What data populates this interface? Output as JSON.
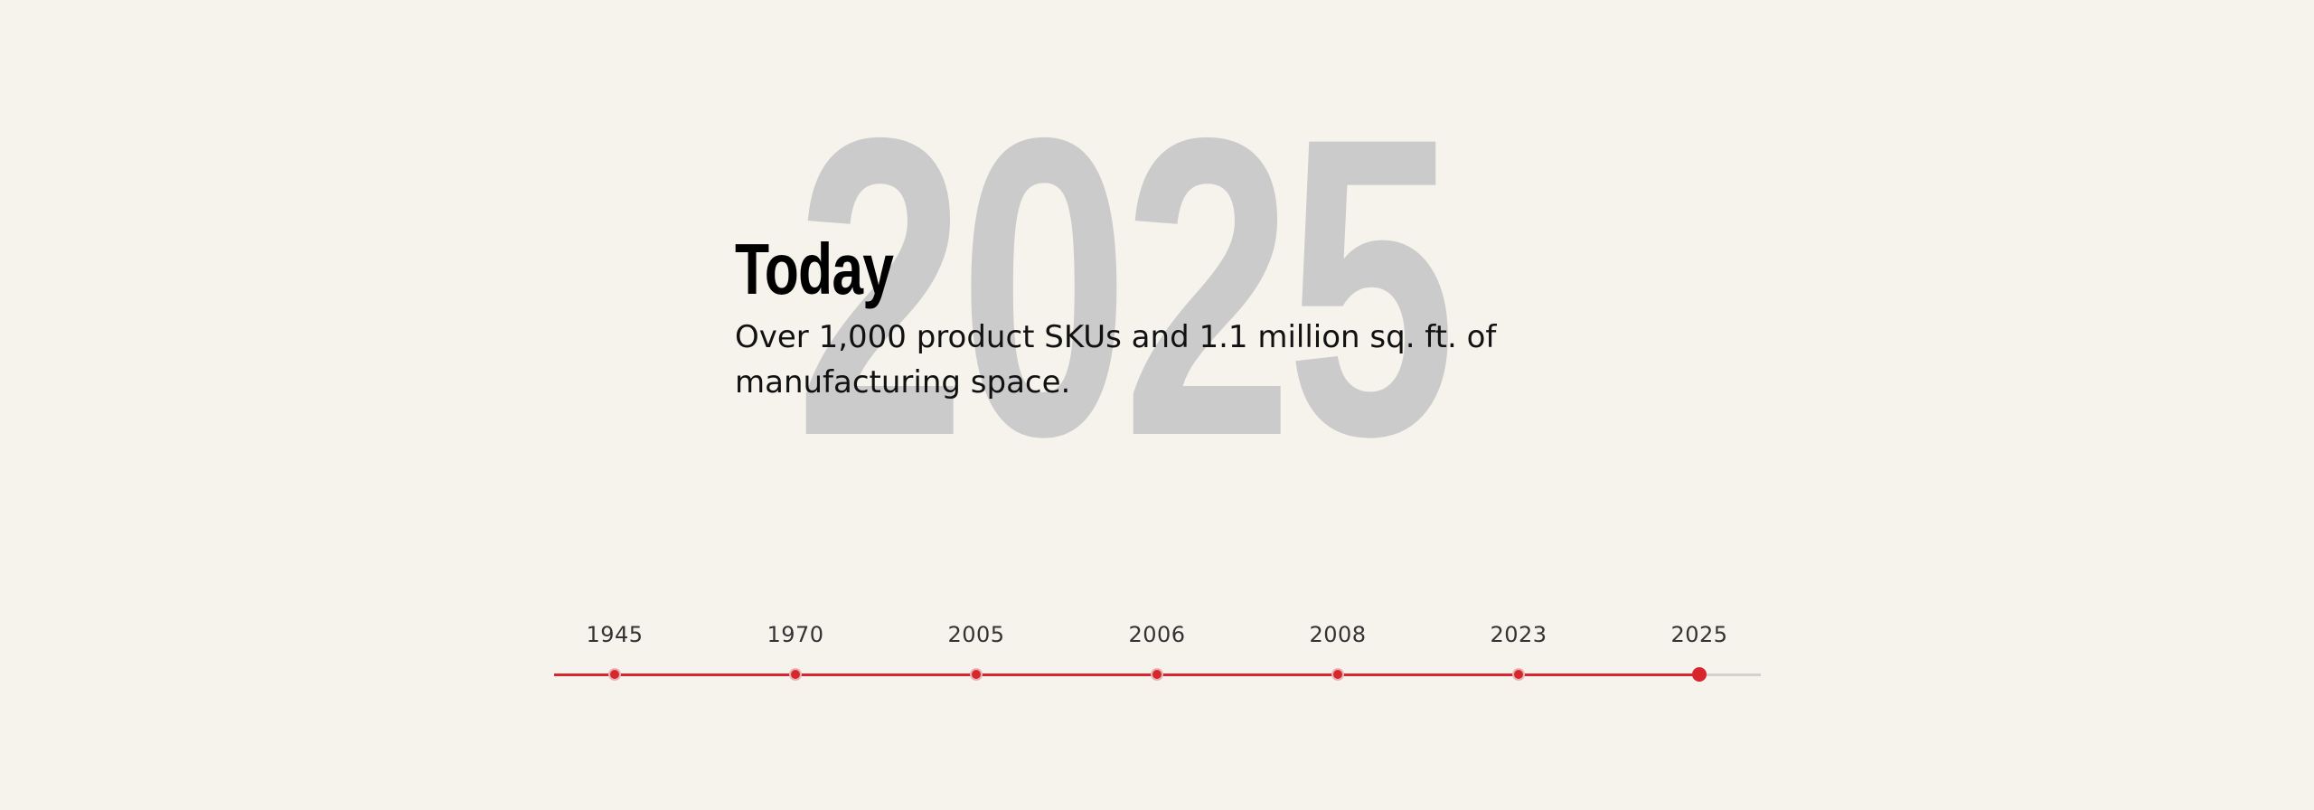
{
  "hero": {
    "big_year": "2025",
    "title": "Today",
    "description": "Over 1,000 product SKUs and 1.1 million sq. ft. of manufacturing space."
  },
  "timeline": {
    "items": [
      {
        "year": "1945"
      },
      {
        "year": "1970"
      },
      {
        "year": "2005"
      },
      {
        "year": "2006"
      },
      {
        "year": "2008"
      },
      {
        "year": "2023"
      },
      {
        "year": "2025"
      }
    ],
    "active_index": 6,
    "colors": {
      "accent": "#d7262e",
      "track": "#d3d1cc",
      "big_year": "#cbcbcb",
      "background": "#f5f3ec"
    }
  }
}
